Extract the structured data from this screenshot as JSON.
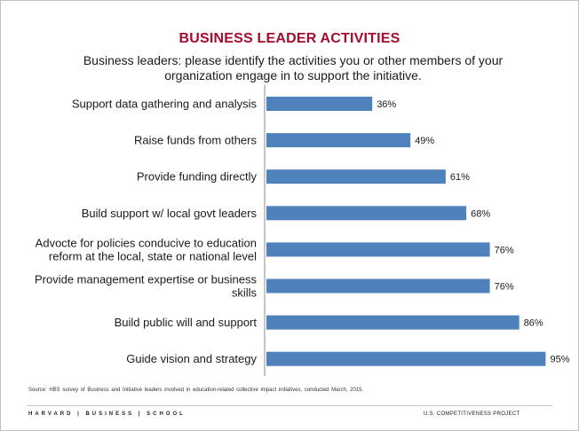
{
  "title": "BUSINESS LEADER ACTIVITIES",
  "subtitle": "Business leaders: please identify the activities you or other members of your organization engage in to support the initiative.",
  "source": "Source: HBS survey of Business and  Initiative leaders involved in education-related  collective impact initiatives,  conducted March,  2015.",
  "footer": {
    "logo": "HARVARD | BUSINESS | SCHOOL",
    "project": "U.S. COMPETITIVENESS PROJECT"
  },
  "colors": {
    "bar": "#4f81bd",
    "title": "#a50b2d"
  },
  "chart_data": {
    "type": "bar",
    "orientation": "horizontal",
    "categories": [
      "Support data gathering and analysis",
      "Raise funds from others",
      "Provide funding directly",
      "Build support w/ local govt leaders",
      "Advocte for policies conducive to education reform at the local, state or national level",
      "Provide management expertise or business skills",
      "Build public will and support",
      "Guide vision and strategy"
    ],
    "category_lines": [
      [
        "Support data gathering and analysis"
      ],
      [
        "Raise funds from others"
      ],
      [
        "Provide funding directly"
      ],
      [
        "Build support w/ local govt leaders"
      ],
      [
        "Advocte for policies conducive to education",
        "reform at the local, state or national level"
      ],
      [
        "Provide management expertise or business",
        "skills"
      ],
      [
        "Build public will and support"
      ],
      [
        "Guide vision and strategy"
      ]
    ],
    "values": [
      36,
      49,
      61,
      68,
      76,
      76,
      86,
      95
    ],
    "value_labels": [
      "36%",
      "49%",
      "61%",
      "68%",
      "76%",
      "76%",
      "86%",
      "95%"
    ],
    "xlim": [
      0,
      100
    ],
    "grid": false,
    "legend": "none"
  }
}
